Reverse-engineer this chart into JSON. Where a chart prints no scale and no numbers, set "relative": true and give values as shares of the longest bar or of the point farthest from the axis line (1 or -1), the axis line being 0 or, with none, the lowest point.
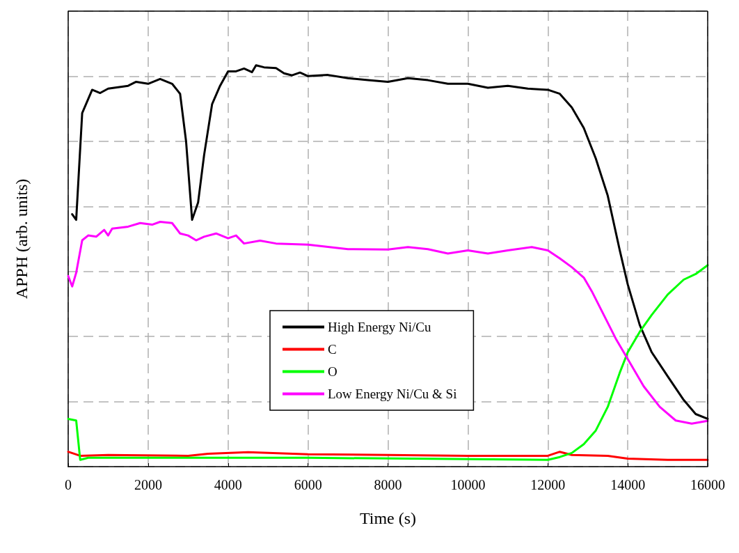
{
  "chart_data": {
    "type": "line",
    "relative": true,
    "xlabel": "Time (s)",
    "ylabel": "APPH (arb. units)",
    "xlim": [
      0,
      16000
    ],
    "xticks": [
      0,
      2000,
      4000,
      6000,
      8000,
      10000,
      12000,
      14000,
      16000
    ],
    "grid": true,
    "legend": "bottom",
    "line_style": "solid",
    "marker": "none",
    "series": [
      {
        "name": "High Energy Ni/Cu",
        "color": "#000000",
        "x": [
          100,
          200,
          350,
          600,
          800,
          1000,
          1500,
          1700,
          2000,
          2300,
          2600,
          2800,
          2950,
          3100,
          3250,
          3400,
          3600,
          3800,
          4000,
          4200,
          4400,
          4600,
          4700,
          4900,
          5200,
          5400,
          5600,
          5800,
          6000,
          6500,
          7000,
          7500,
          8000,
          8500,
          9000,
          9500,
          10000,
          10500,
          11000,
          11500,
          12000,
          12300,
          12600,
          12900,
          13200,
          13500,
          13800,
          14000,
          14300,
          14600,
          15000,
          15400,
          15700,
          16000
        ],
        "values": [
          0.629,
          0.615,
          0.881,
          0.939,
          0.931,
          0.942,
          0.949,
          0.959,
          0.954,
          0.966,
          0.954,
          0.929,
          0.81,
          0.615,
          0.658,
          0.776,
          0.903,
          0.949,
          0.985,
          0.985,
          0.992,
          0.983,
          1.0,
          0.995,
          0.993,
          0.98,
          0.975,
          0.982,
          0.973,
          0.976,
          0.968,
          0.963,
          0.959,
          0.968,
          0.963,
          0.954,
          0.954,
          0.944,
          0.949,
          0.942,
          0.939,
          0.929,
          0.895,
          0.844,
          0.768,
          0.675,
          0.539,
          0.454,
          0.353,
          0.285,
          0.225,
          0.166,
          0.131,
          0.119
        ]
      },
      {
        "name": "C",
        "color": "#ff0000",
        "x": [
          0,
          300,
          1000,
          3000,
          3500,
          4500,
          6000,
          8000,
          10000,
          12000,
          12300,
          12600,
          13500,
          14000,
          15000,
          15500,
          16000
        ],
        "values": [
          0.037,
          0.027,
          0.029,
          0.027,
          0.032,
          0.036,
          0.031,
          0.029,
          0.027,
          0.027,
          0.037,
          0.029,
          0.027,
          0.02,
          0.017,
          0.017,
          0.017
        ]
      },
      {
        "name": "O",
        "color": "#00ff00",
        "x": [
          0,
          200,
          300,
          500,
          6000,
          12000,
          12300,
          12600,
          12900,
          13200,
          13500,
          13800,
          14000,
          14300,
          14600,
          15000,
          15400,
          15700,
          16000
        ],
        "values": [
          0.119,
          0.115,
          0.017,
          0.022,
          0.022,
          0.017,
          0.024,
          0.034,
          0.056,
          0.09,
          0.149,
          0.234,
          0.285,
          0.336,
          0.378,
          0.429,
          0.466,
          0.48,
          0.502
        ]
      },
      {
        "name": "Low Energy Ni/Cu & Si",
        "color": "#ff00ff",
        "x": [
          0,
          100,
          200,
          350,
          500,
          700,
          900,
          1000,
          1100,
          1500,
          1800,
          2100,
          2300,
          2600,
          2800,
          3000,
          3200,
          3400,
          3700,
          4000,
          4200,
          4400,
          4800,
          5200,
          6000,
          7000,
          8000,
          8500,
          9000,
          9500,
          10000,
          10500,
          11000,
          11600,
          12000,
          12300,
          12600,
          12900,
          13100,
          13400,
          13700,
          14000,
          14400,
          14800,
          15200,
          15600,
          16000
        ],
        "values": [
          0.475,
          0.449,
          0.483,
          0.564,
          0.576,
          0.573,
          0.59,
          0.576,
          0.593,
          0.598,
          0.607,
          0.603,
          0.61,
          0.607,
          0.581,
          0.576,
          0.564,
          0.573,
          0.581,
          0.569,
          0.576,
          0.556,
          0.563,
          0.556,
          0.553,
          0.542,
          0.541,
          0.547,
          0.542,
          0.531,
          0.539,
          0.531,
          0.539,
          0.547,
          0.539,
          0.519,
          0.497,
          0.471,
          0.437,
          0.378,
          0.319,
          0.268,
          0.2,
          0.149,
          0.115,
          0.107,
          0.114
        ]
      }
    ]
  }
}
